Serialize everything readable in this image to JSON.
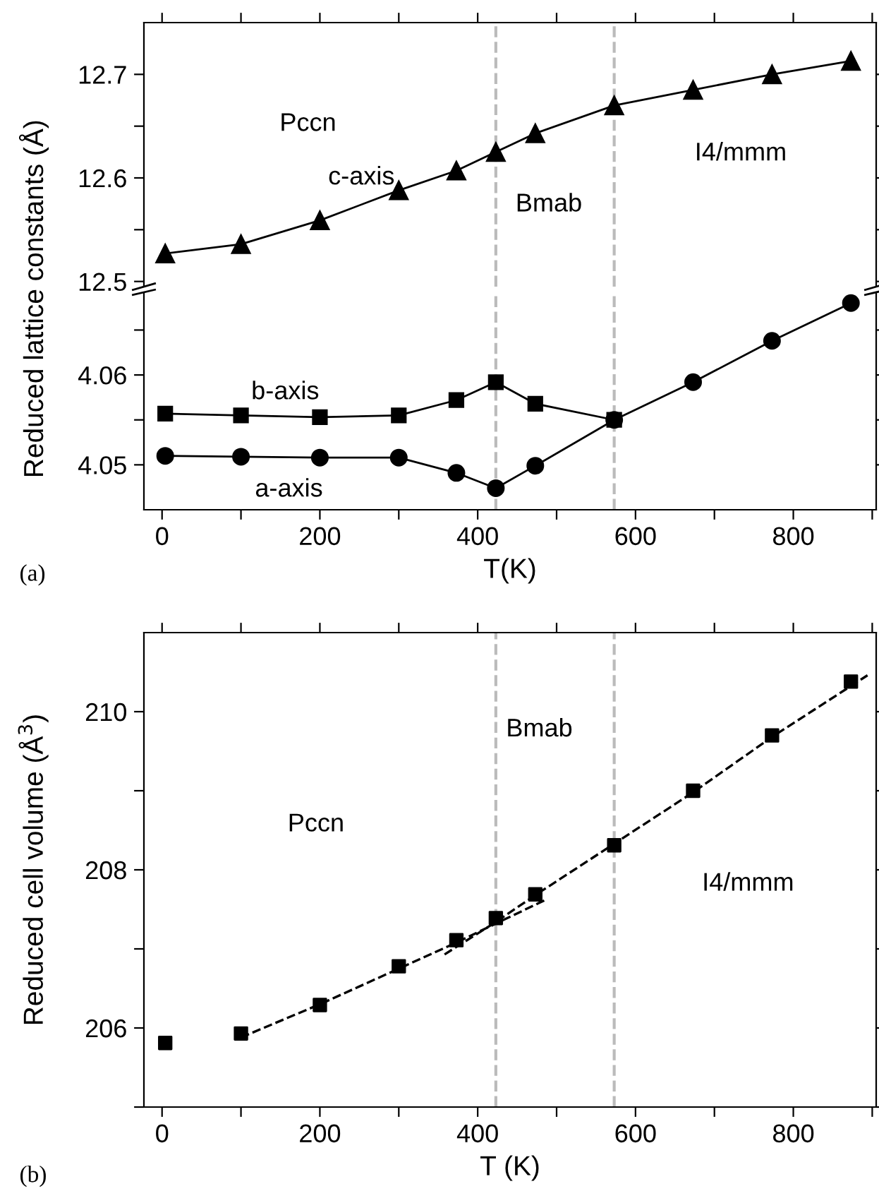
{
  "chart_data": [
    {
      "type": "line",
      "x": [
        4,
        100,
        200,
        300,
        373,
        423,
        473,
        573,
        673,
        773,
        873
      ],
      "xlim": [
        -23,
        905
      ],
      "xticks": [
        0,
        {
          "value": 100,
          "label": null
        },
        200,
        {
          "value": 300,
          "label": null
        },
        400,
        {
          "value": 500,
          "label": null
        },
        600,
        {
          "value": 700,
          "label": null
        },
        800,
        {
          "value": 900,
          "label": null
        }
      ],
      "ylim": [
        12.495,
        12.75
      ],
      "yticks": [
        12.5,
        {
          "value": 12.55,
          "label": null
        },
        12.6,
        {
          "value": 12.65,
          "label": null
        },
        12.7
      ],
      "tick_labels": "y",
      "series": [
        {
          "color": "#000000",
          "marker": "triangle",
          "values": [
            12.527,
            12.536,
            12.559,
            12.588,
            12.607,
            12.625,
            12.643,
            12.67,
            12.685,
            12.7,
            12.713
          ]
        }
      ],
      "ref_lines": [
        {
          "axis": "x",
          "value": 423,
          "color": "#bbbbbb",
          "line_style": "dashed"
        },
        {
          "axis": "x",
          "value": 573,
          "color": "#bbbbbb",
          "line_style": "dashed"
        }
      ],
      "annotations": [
        "Pccn",
        "c-axis",
        "Bmab",
        "I4/mmm"
      ]
    },
    {
      "type": "line",
      "x": [
        4,
        100,
        200,
        300,
        373,
        423,
        473,
        573,
        673,
        773,
        873
      ],
      "xlim": [
        -23,
        905
      ],
      "xticks": [
        0,
        {
          "value": 100,
          "label": null
        },
        200,
        {
          "value": 300,
          "label": null
        },
        400,
        {
          "value": 500,
          "label": null
        },
        600,
        {
          "value": 700,
          "label": null
        },
        800,
        {
          "value": 900,
          "label": null
        }
      ],
      "ylim": [
        4.045,
        4.0692
      ],
      "yticks": [
        4.05,
        {
          "value": 4.055,
          "label": null
        },
        4.06,
        {
          "value": 4.065,
          "label": null
        }
      ],
      "xlabel": "T(K)",
      "ylabel": "Reduced lattice constants (Å)",
      "series": [
        {
          "color": "#000000",
          "marker": "square",
          "values": [
            4.0557,
            4.0555,
            4.0553,
            4.0555,
            4.0572,
            4.0592,
            4.0568,
            4.055,
            null,
            null,
            null
          ]
        },
        {
          "color": "#000000",
          "marker": "circle",
          "values": [
            4.051,
            4.0509,
            4.0508,
            4.0508,
            4.0491,
            4.0474,
            4.0499,
            4.055,
            4.0592,
            4.0638,
            4.068
          ]
        }
      ],
      "ref_lines": [
        {
          "axis": "x",
          "value": 423,
          "color": "#bbbbbb",
          "line_style": "dashed"
        },
        {
          "axis": "x",
          "value": 573,
          "color": "#bbbbbb",
          "line_style": "dashed"
        }
      ],
      "annotations": [
        "b-axis",
        "a-axis",
        "(a)"
      ]
    },
    {
      "type": "scatter",
      "x": [
        4,
        100,
        200,
        300,
        373,
        423,
        473,
        573,
        673,
        773,
        873
      ],
      "xlim": [
        -23,
        905
      ],
      "xticks": [
        0,
        {
          "value": 100,
          "label": null
        },
        200,
        {
          "value": 300,
          "label": null
        },
        400,
        {
          "value": 500,
          "label": null
        },
        600,
        {
          "value": 700,
          "label": null
        },
        800,
        {
          "value": 900,
          "label": null
        }
      ],
      "ylim": [
        205,
        211
      ],
      "yticks": [
        {
          "value": 205,
          "label": null
        },
        206,
        {
          "value": 207,
          "label": null
        },
        208,
        {
          "value": 209,
          "label": null
        },
        210
      ],
      "xlabel": "T (K)",
      "ylabel": "Reduced cell volume (Å$^{3}$)",
      "series": [
        {
          "color": "#000000",
          "marker": "square",
          "values": [
            205.81,
            205.93,
            206.29,
            206.78,
            207.11,
            207.39,
            207.69,
            208.31,
            209.0,
            209.7,
            210.38
          ]
        },
        {
          "type": "line",
          "color": "#000000",
          "marker": "none",
          "line_style": "dashed",
          "x": [
            100,
            200,
            300,
            373,
            423,
            488
          ],
          "values": [
            205.88,
            206.3,
            206.75,
            207.08,
            207.32,
            207.63
          ]
        },
        {
          "type": "line",
          "color": "#000000",
          "marker": "none",
          "line_style": "dashed",
          "x": [
            358,
            423,
            473,
            573,
            673,
            773,
            894
          ],
          "values": [
            206.93,
            207.34,
            207.68,
            208.33,
            208.98,
            209.68,
            210.46
          ]
        }
      ],
      "ref_lines": [
        {
          "axis": "x",
          "value": 423,
          "color": "#bbbbbb",
          "line_style": "dashed"
        },
        {
          "axis": "x",
          "value": 573,
          "color": "#bbbbbb",
          "line_style": "dashed"
        }
      ],
      "annotations": [
        "Pccn",
        "Bmab",
        "I4/mmm",
        "(b)"
      ]
    }
  ]
}
